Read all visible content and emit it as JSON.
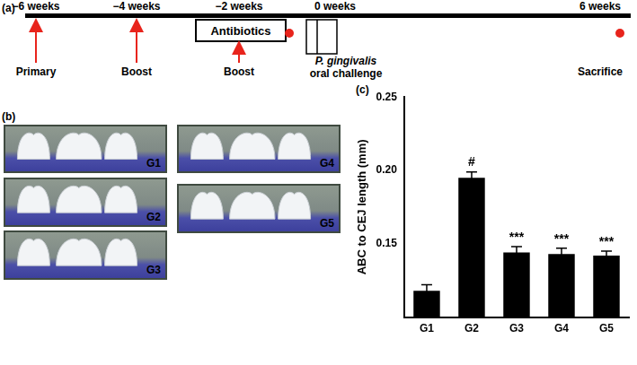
{
  "panel_labels": [
    "(a)",
    "(b)",
    "(c)"
  ],
  "timeline": {
    "time_labels": [
      "−6 weeks",
      "−4 weeks",
      "−2 weeks",
      "0 weeks",
      "6 weeks"
    ],
    "arrows": [
      "Primary",
      "Boost",
      "Boost"
    ],
    "box": "Antibiotics",
    "challenge": {
      "organism": "P. gingivalis",
      "text": "oral challenge"
    },
    "endpoint": "Sacrifice"
  },
  "photos": [
    "G1",
    "G2",
    "G3",
    "G4",
    "G5"
  ],
  "chart_data": {
    "type": "bar",
    "categories": [
      "G1",
      "G2",
      "G3",
      "G4",
      "G5"
    ],
    "values": [
      0.118,
      0.195,
      0.144,
      0.143,
      0.142
    ],
    "errors": [
      0.004,
      0.004,
      0.004,
      0.004,
      0.003
    ],
    "color": "#000000",
    "y_label": "ABC to CEJ length (mm)",
    "ylim": [
      0.1,
      0.25
    ],
    "yticks": [
      {
        "value": 0.15,
        "label": "0.15"
      },
      {
        "value": 0.2,
        "label": "0.20"
      },
      {
        "value": 0.25,
        "label": "0.25"
      }
    ],
    "grid": false,
    "annotations": [
      {
        "category": "G2",
        "text": "#"
      },
      {
        "category": "G3",
        "text": "***"
      },
      {
        "category": "G4",
        "text": "***"
      },
      {
        "category": "G5",
        "text": "***"
      }
    ]
  }
}
